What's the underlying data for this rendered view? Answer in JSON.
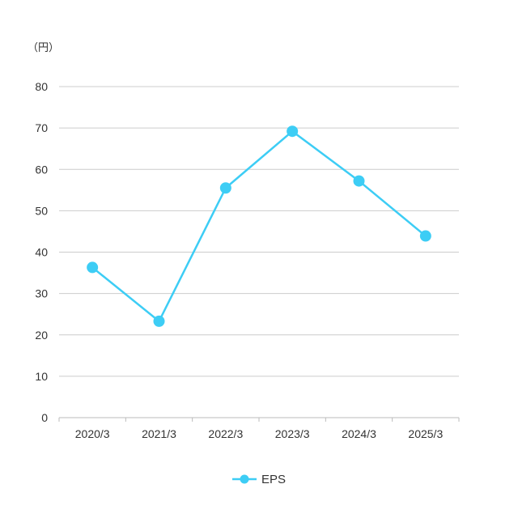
{
  "chart_data": {
    "type": "line",
    "unit_label": "（円）",
    "categories": [
      "2020/3",
      "2021/3",
      "2022/3",
      "2023/3",
      "2024/3",
      "2025/3"
    ],
    "series": [
      {
        "name": "EPS",
        "color": "#3dcdf5",
        "values": [
          36.3,
          23.3,
          55.5,
          69.2,
          57.2,
          43.9
        ]
      }
    ],
    "ylim": [
      0,
      80
    ],
    "yticks": [
      "0",
      "10",
      "20",
      "30",
      "40",
      "50",
      "60",
      "70",
      "80"
    ],
    "grid": true,
    "legend_position": "bottom-center",
    "colors": {
      "grid": "#cccccc",
      "axis": "#bbbbbb",
      "text": "#333333"
    }
  }
}
